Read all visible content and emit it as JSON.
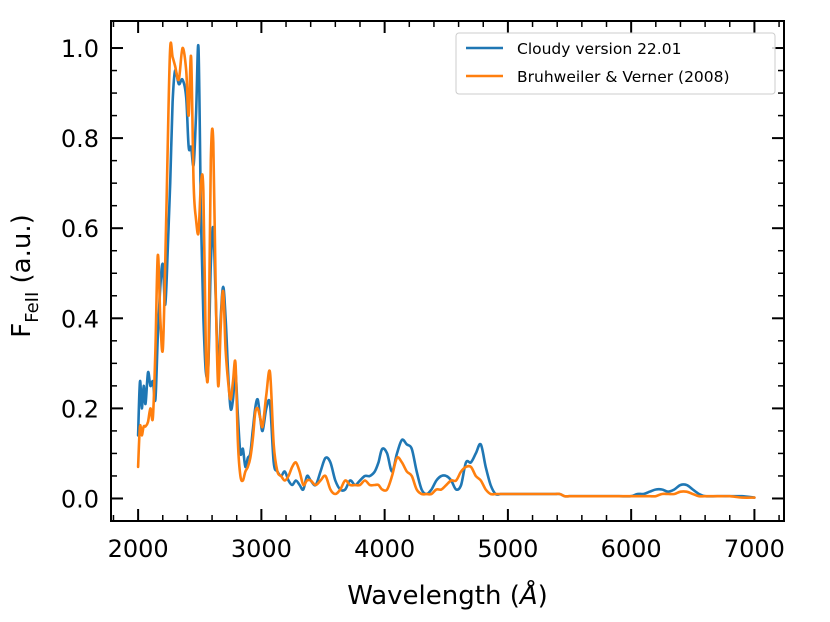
{
  "chart_data": {
    "type": "line",
    "title": "",
    "xlabel": "Wavelength (Å)",
    "ylabel_main": "F",
    "ylabel_sub": "FeII",
    "ylabel_unit": " (a.u.)",
    "xlim": [
      1780,
      7240
    ],
    "ylim": [
      -0.05,
      1.06
    ],
    "xticks": [
      2000,
      3000,
      4000,
      5000,
      6000,
      7000
    ],
    "yticks": [
      0.0,
      0.2,
      0.4,
      0.6,
      0.8,
      1.0
    ],
    "xtick_labels": [
      "2000",
      "3000",
      "4000",
      "5000",
      "6000",
      "7000"
    ],
    "ytick_labels": [
      "0.0",
      "0.2",
      "0.4",
      "0.6",
      "0.8",
      "1.0"
    ],
    "legend_position": "top-right",
    "series": [
      {
        "name": "Cloudy version 22.01",
        "color": "#1f77b4",
        "x": [
          2000,
          2015,
          2030,
          2045,
          2060,
          2080,
          2100,
          2120,
          2140,
          2160,
          2180,
          2200,
          2220,
          2240,
          2260,
          2280,
          2300,
          2330,
          2360,
          2390,
          2410,
          2430,
          2450,
          2470,
          2490,
          2510,
          2530,
          2550,
          2570,
          2590,
          2610,
          2630,
          2650,
          2670,
          2690,
          2710,
          2730,
          2750,
          2770,
          2790,
          2810,
          2830,
          2850,
          2870,
          2890,
          2910,
          2930,
          2950,
          2970,
          2990,
          3010,
          3040,
          3070,
          3100,
          3130,
          3160,
          3190,
          3220,
          3250,
          3280,
          3310,
          3340,
          3370,
          3400,
          3440,
          3480,
          3520,
          3560,
          3600,
          3640,
          3680,
          3720,
          3760,
          3800,
          3840,
          3880,
          3920,
          3950,
          3980,
          4020,
          4060,
          4100,
          4140,
          4180,
          4220,
          4260,
          4300,
          4340,
          4380,
          4420,
          4460,
          4500,
          4540,
          4580,
          4620,
          4660,
          4700,
          4740,
          4780,
          4820,
          4860,
          4900,
          4940,
          4980,
          5020,
          5060,
          5100,
          5140,
          5180,
          5220,
          5260,
          5300,
          5340,
          5380,
          5420,
          5460,
          5500,
          5550,
          5600,
          5650,
          5700,
          5800,
          5900,
          6000,
          6050,
          6100,
          6150,
          6200,
          6250,
          6300,
          6350,
          6400,
          6450,
          6500,
          6550,
          6600,
          6700,
          6800,
          6900,
          7000
        ],
        "y": [
          0.14,
          0.26,
          0.2,
          0.25,
          0.21,
          0.28,
          0.25,
          0.26,
          0.22,
          0.36,
          0.47,
          0.52,
          0.43,
          0.55,
          0.7,
          0.88,
          0.95,
          0.92,
          0.93,
          0.89,
          0.78,
          0.78,
          0.74,
          0.85,
          1.0,
          0.62,
          0.4,
          0.28,
          0.3,
          0.52,
          0.6,
          0.44,
          0.28,
          0.4,
          0.47,
          0.4,
          0.28,
          0.2,
          0.22,
          0.28,
          0.18,
          0.1,
          0.11,
          0.07,
          0.09,
          0.1,
          0.15,
          0.2,
          0.22,
          0.18,
          0.15,
          0.2,
          0.21,
          0.08,
          0.06,
          0.05,
          0.06,
          0.04,
          0.03,
          0.04,
          0.03,
          0.02,
          0.05,
          0.04,
          0.03,
          0.06,
          0.09,
          0.08,
          0.04,
          0.02,
          0.02,
          0.04,
          0.03,
          0.04,
          0.05,
          0.05,
          0.06,
          0.08,
          0.11,
          0.1,
          0.06,
          0.1,
          0.13,
          0.12,
          0.11,
          0.06,
          0.02,
          0.01,
          0.02,
          0.04,
          0.05,
          0.05,
          0.04,
          0.02,
          0.03,
          0.08,
          0.08,
          0.1,
          0.12,
          0.07,
          0.03,
          0.01,
          0.01,
          0.01,
          0.01,
          0.01,
          0.01,
          0.01,
          0.01,
          0.01,
          0.01,
          0.01,
          0.01,
          0.01,
          0.01,
          0.005,
          0.005,
          0.005,
          0.005,
          0.005,
          0.005,
          0.005,
          0.005,
          0.005,
          0.01,
          0.01,
          0.015,
          0.02,
          0.02,
          0.015,
          0.02,
          0.03,
          0.03,
          0.02,
          0.01,
          0.005,
          0.005,
          0.005,
          0.005,
          0.002
        ],
        "line_width": 2.6
      },
      {
        "name": "Bruhweiler & Verner (2008)",
        "color": "#ff7f0e",
        "x": [
          2000,
          2015,
          2030,
          2045,
          2060,
          2080,
          2100,
          2120,
          2140,
          2160,
          2180,
          2200,
          2220,
          2240,
          2260,
          2280,
          2300,
          2330,
          2360,
          2390,
          2410,
          2430,
          2450,
          2470,
          2490,
          2510,
          2530,
          2550,
          2570,
          2590,
          2610,
          2630,
          2650,
          2670,
          2690,
          2710,
          2730,
          2750,
          2770,
          2790,
          2810,
          2830,
          2850,
          2870,
          2890,
          2910,
          2930,
          2950,
          2970,
          2990,
          3010,
          3040,
          3070,
          3100,
          3130,
          3160,
          3190,
          3220,
          3250,
          3280,
          3310,
          3340,
          3370,
          3400,
          3440,
          3480,
          3520,
          3560,
          3600,
          3640,
          3680,
          3720,
          3760,
          3800,
          3840,
          3880,
          3920,
          3950,
          3980,
          4020,
          4060,
          4100,
          4140,
          4180,
          4220,
          4260,
          4300,
          4340,
          4380,
          4420,
          4460,
          4500,
          4540,
          4580,
          4620,
          4660,
          4700,
          4740,
          4780,
          4820,
          4860,
          4900,
          4940,
          4980,
          5020,
          5060,
          5100,
          5140,
          5180,
          5220,
          5260,
          5300,
          5340,
          5380,
          5420,
          5460,
          5500,
          5550,
          5600,
          5650,
          5700,
          5800,
          5900,
          6000,
          6050,
          6100,
          6150,
          6200,
          6250,
          6300,
          6350,
          6400,
          6450,
          6500,
          6550,
          6600,
          6700,
          6800,
          6900,
          7000
        ],
        "y": [
          0.07,
          0.16,
          0.14,
          0.16,
          0.16,
          0.17,
          0.2,
          0.18,
          0.33,
          0.54,
          0.4,
          0.33,
          0.52,
          0.78,
          1.0,
          0.98,
          0.96,
          0.93,
          1.0,
          0.95,
          0.85,
          0.98,
          0.7,
          0.62,
          0.59,
          0.7,
          0.68,
          0.32,
          0.3,
          0.75,
          0.79,
          0.45,
          0.25,
          0.38,
          0.46,
          0.33,
          0.26,
          0.22,
          0.26,
          0.3,
          0.12,
          0.05,
          0.04,
          0.06,
          0.07,
          0.09,
          0.13,
          0.19,
          0.2,
          0.18,
          0.16,
          0.23,
          0.28,
          0.12,
          0.06,
          0.05,
          0.04,
          0.05,
          0.07,
          0.08,
          0.06,
          0.03,
          0.04,
          0.04,
          0.03,
          0.04,
          0.05,
          0.02,
          0.01,
          0.02,
          0.04,
          0.03,
          0.03,
          0.03,
          0.04,
          0.03,
          0.03,
          0.03,
          0.02,
          0.02,
          0.05,
          0.09,
          0.08,
          0.06,
          0.05,
          0.02,
          0.01,
          0.01,
          0.01,
          0.02,
          0.02,
          0.03,
          0.04,
          0.04,
          0.06,
          0.07,
          0.07,
          0.05,
          0.04,
          0.02,
          0.01,
          0.01,
          0.01,
          0.01,
          0.01,
          0.01,
          0.01,
          0.01,
          0.01,
          0.01,
          0.01,
          0.01,
          0.01,
          0.01,
          0.01,
          0.005,
          0.005,
          0.005,
          0.005,
          0.005,
          0.005,
          0.005,
          0.005,
          0.005,
          0.005,
          0.005,
          0.005,
          0.005,
          0.01,
          0.01,
          0.01,
          0.015,
          0.015,
          0.01,
          0.005,
          0.005,
          0.005,
          0.005,
          0.002,
          0.002
        ],
        "line_width": 2.6
      }
    ]
  }
}
